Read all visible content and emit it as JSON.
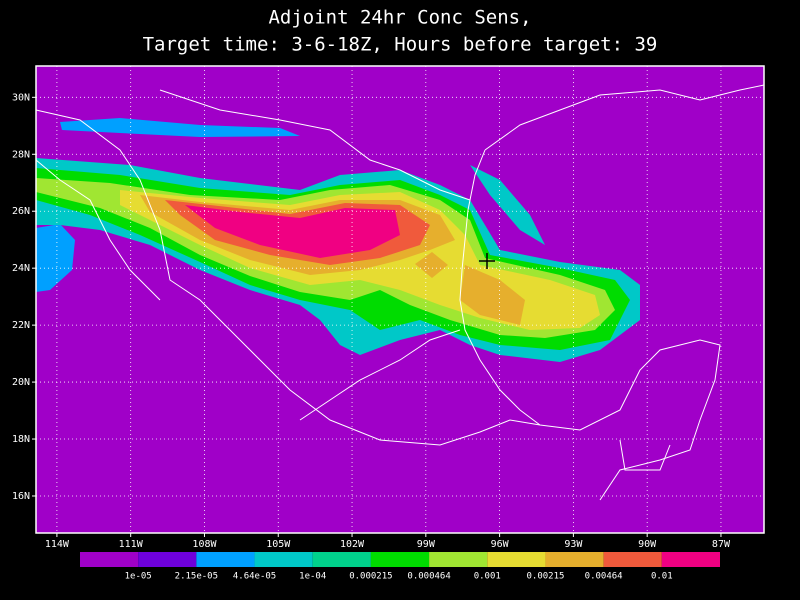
{
  "map": {
    "title": [
      "Adjoint 24hr Conc Sens,",
      "Target time: 3-6-18Z, Hours before target: 39"
    ],
    "lonlim": [
      -114.85,
      -85.25
    ],
    "latlim": [
      14.7,
      31.1
    ],
    "lon_ticks": [
      {
        "value": -114,
        "label": "114W"
      },
      {
        "value": -111,
        "label": "111W"
      },
      {
        "value": -108,
        "label": "108W"
      },
      {
        "value": -105,
        "label": "105W"
      },
      {
        "value": -102,
        "label": "102W"
      },
      {
        "value": -99,
        "label": "99W"
      },
      {
        "value": -96,
        "label": "96W"
      },
      {
        "value": -93,
        "label": "93W"
      },
      {
        "value": -90,
        "label": "90W"
      },
      {
        "value": -87,
        "label": "87W"
      }
    ],
    "lat_ticks": [
      {
        "value": 16,
        "label": "16N"
      },
      {
        "value": 18,
        "label": "18N"
      },
      {
        "value": 20,
        "label": "20N"
      },
      {
        "value": 22,
        "label": "22N"
      },
      {
        "value": 24,
        "label": "24N"
      },
      {
        "value": 26,
        "label": "26N"
      },
      {
        "value": 28,
        "label": "28N"
      },
      {
        "value": 30,
        "label": "30N"
      }
    ],
    "grid": true,
    "colorbar": {
      "labels": [
        "1e-05",
        "2.15e-05",
        "4.64e-05",
        "1e-04",
        "0.000215",
        "0.000464",
        "0.001",
        "0.00215",
        "0.00464",
        "0.01"
      ],
      "colors": [
        "#a000c8",
        "#6e00dc",
        "#00a0ff",
        "#00c8c8",
        "#00d28c",
        "#00dc00",
        "#a0e632",
        "#e6dc32",
        "#e6af2d",
        "#f05a3c",
        "#f00082"
      ]
    }
  }
}
